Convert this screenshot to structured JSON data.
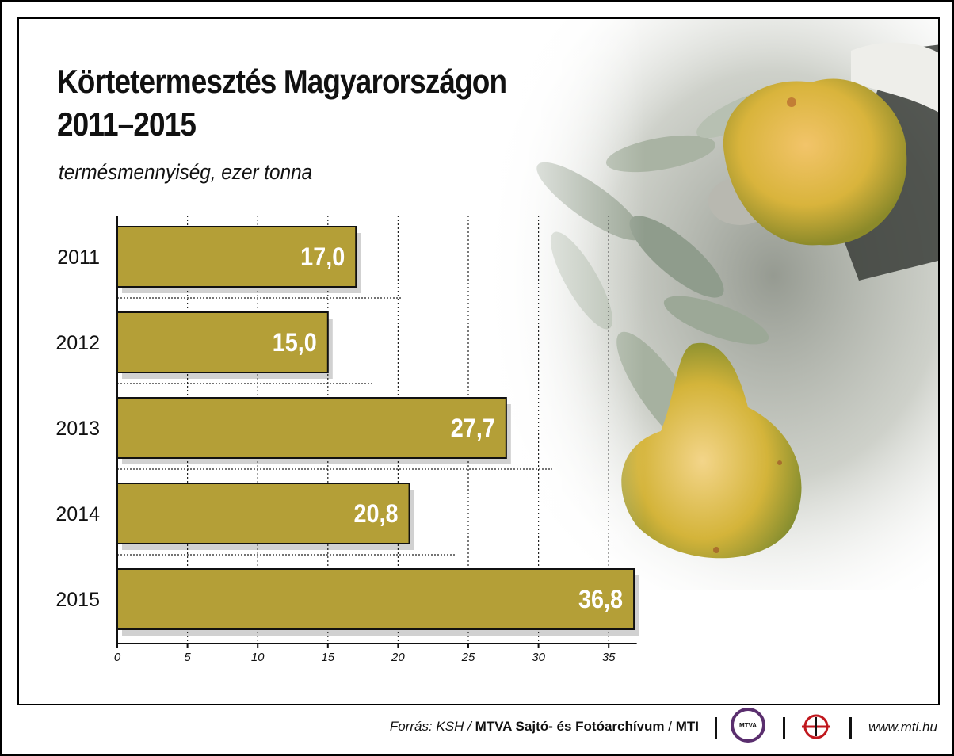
{
  "title_line1": "Körtetermesztés Magyarországon",
  "title_line2": "2011–2015",
  "subtitle": "termésmennyiség, ezer tonna",
  "footer": {
    "source_prefix": "Forrás: KSH / ",
    "source_bold": "MTVA Sajtó- és Fotóarchívum",
    "source_sep": " / ",
    "source_mti": "MTI",
    "mtva_logo_text": "MTVA",
    "website": "www.mti.hu"
  },
  "colors": {
    "bar_fill": "#b49f37",
    "bar_stroke": "#111111",
    "label_color": "#ffffff"
  },
  "chart_data": {
    "type": "bar",
    "orientation": "horizontal",
    "categories": [
      "2011",
      "2012",
      "2013",
      "2014",
      "2015"
    ],
    "values": [
      17.0,
      15.0,
      27.7,
      20.8,
      36.8
    ],
    "value_labels": [
      "17,0",
      "15,0",
      "27,7",
      "20,8",
      "36,8"
    ],
    "xlim": [
      0,
      37
    ],
    "xticks": [
      0,
      5,
      10,
      15,
      20,
      25,
      30,
      35
    ],
    "grid": true
  }
}
